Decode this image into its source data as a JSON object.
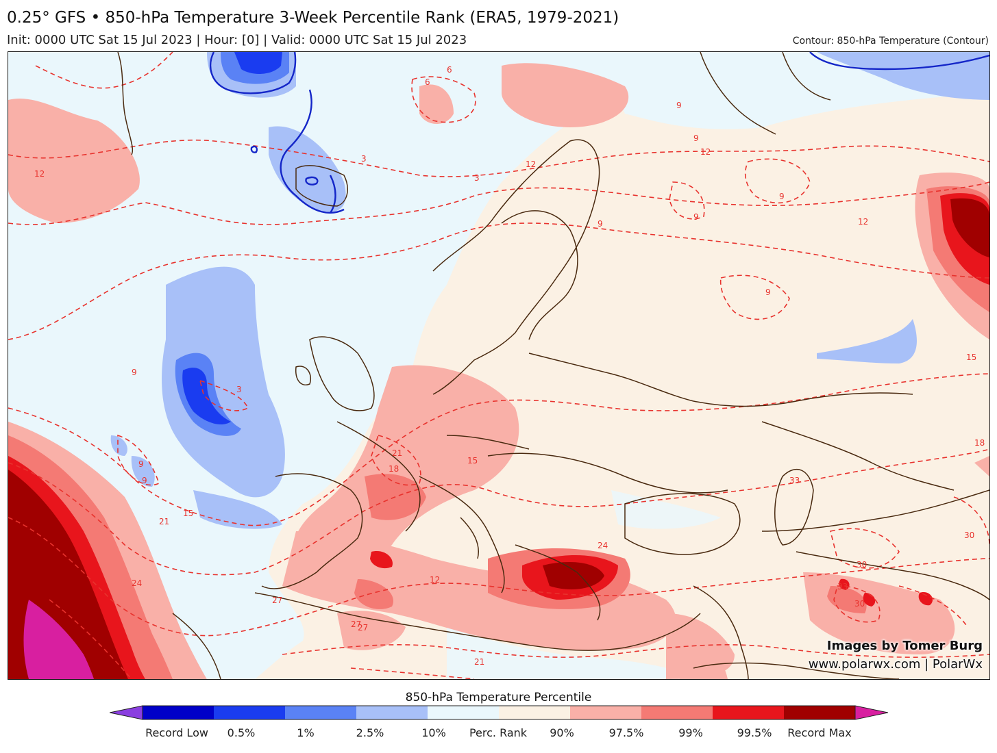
{
  "header": {
    "title": "0.25° GFS • 850-hPa Temperature 3-Week Percentile Rank (ERA5, 1979-2021)",
    "subtitle": "Init: 0000 UTC Sat 15 Jul 2023 | Hour: [0] | Valid: 0000 UTC Sat 15 Jul 2023",
    "contour_note": "Contour: 850-hPa Temperature (Contour)"
  },
  "map": {
    "credit_line1": "Images by Tomer Burg",
    "credit_line2": "www.polarwx.com | PolarWx",
    "contour_labels": [
      "6",
      "6",
      "9",
      "9",
      "9",
      "9",
      "12",
      "12",
      "3",
      "3",
      "3",
      "9",
      "9",
      "9",
      "12",
      "15",
      "15",
      "15",
      "18",
      "18",
      "21",
      "21",
      "24",
      "24",
      "27",
      "27",
      "27",
      "21",
      "30",
      "30",
      "30",
      "33",
      "33",
      "9",
      "12",
      "9",
      "12"
    ]
  },
  "colorbar": {
    "title": "850-hPa Temperature Percentile",
    "labels": [
      "Record Low",
      "0.5%",
      "1%",
      "2.5%",
      "10%",
      "Perc. Rank",
      "90%",
      "97.5%",
      "99%",
      "99.5%",
      "Record Max"
    ],
    "colors": {
      "record_low": "#8a3ee0",
      "p0_5": "#0000c8",
      "p1": "#1a3cf0",
      "p2_5": "#5a82f5",
      "p10": "#a8c0f8",
      "neutral_low": "#eaf7fc",
      "neutral_high": "#fbf1e4",
      "p90": "#f9b0a8",
      "p97_5": "#f47a74",
      "p99": "#e8151c",
      "p99_5": "#a00000",
      "record_max": "#d81fa0",
      "contour": "#e8332e",
      "border": "#4a2a10",
      "cold_contour": "#1426c8"
    }
  }
}
